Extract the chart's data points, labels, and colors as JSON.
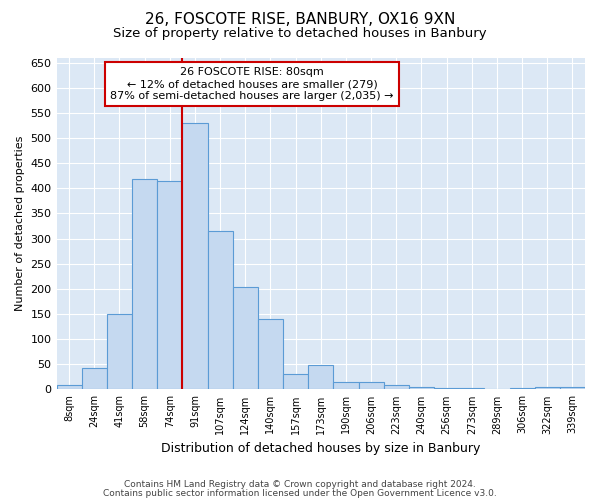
{
  "title1": "26, FOSCOTE RISE, BANBURY, OX16 9XN",
  "title2": "Size of property relative to detached houses in Banbury",
  "xlabel": "Distribution of detached houses by size in Banbury",
  "ylabel": "Number of detached properties",
  "categories": [
    "8sqm",
    "24sqm",
    "41sqm",
    "58sqm",
    "74sqm",
    "91sqm",
    "107sqm",
    "124sqm",
    "140sqm",
    "157sqm",
    "173sqm",
    "190sqm",
    "206sqm",
    "223sqm",
    "240sqm",
    "256sqm",
    "273sqm",
    "289sqm",
    "306sqm",
    "322sqm",
    "339sqm"
  ],
  "values": [
    8,
    42,
    150,
    418,
    415,
    530,
    315,
    203,
    140,
    30,
    48,
    15,
    15,
    8,
    5,
    3,
    2,
    1,
    2,
    5,
    5
  ],
  "bar_color": "#c5d9f0",
  "bar_edge_color": "#5b9bd5",
  "marker_label": "26 FOSCOTE RISE: 80sqm",
  "annotation_line1": "← 12% of detached houses are smaller (279)",
  "annotation_line2": "87% of semi-detached houses are larger (2,035) →",
  "annotation_box_color": "#ffffff",
  "annotation_box_edge": "#cc0000",
  "vline_color": "#cc0000",
  "vline_x": 4.5,
  "ylim": [
    0,
    660
  ],
  "yticks": [
    0,
    50,
    100,
    150,
    200,
    250,
    300,
    350,
    400,
    450,
    500,
    550,
    600,
    650
  ],
  "footer1": "Contains HM Land Registry data © Crown copyright and database right 2024.",
  "footer2": "Contains public sector information licensed under the Open Government Licence v3.0.",
  "fig_bg_color": "#ffffff",
  "plot_bg_color": "#dce8f5",
  "grid_color": "#ffffff",
  "title1_fontsize": 11,
  "title2_fontsize": 9.5
}
